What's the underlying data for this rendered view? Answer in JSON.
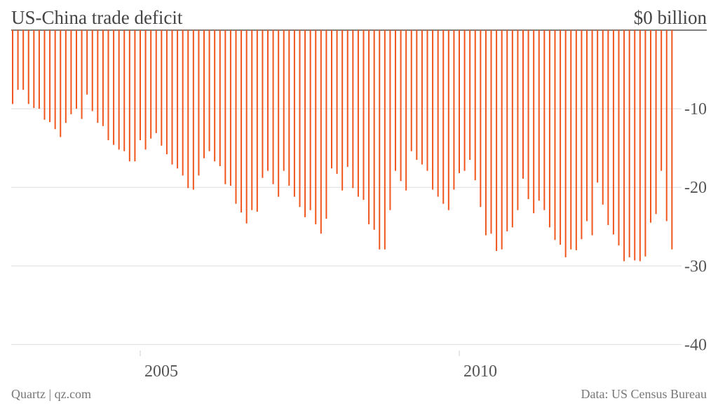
{
  "chart_data": {
    "type": "bar",
    "title": "US-China trade deficit",
    "source": "Data: US Census Bureau",
    "credit": "Quartz | qz.com",
    "color": "#f0561d",
    "grid": true,
    "categories": [
      null,
      null,
      null,
      null,
      null,
      null,
      null,
      null,
      null,
      null,
      null,
      null,
      null,
      null,
      null,
      null,
      null,
      null,
      null,
      null,
      null,
      null,
      null,
      null,
      "2005",
      null,
      null,
      null,
      null,
      null,
      null,
      null,
      null,
      null,
      null,
      null,
      null,
      null,
      null,
      null,
      null,
      null,
      null,
      null,
      null,
      null,
      null,
      null,
      null,
      null,
      null,
      null,
      null,
      null,
      null,
      null,
      null,
      null,
      null,
      null,
      null,
      null,
      null,
      null,
      null,
      null,
      null,
      null,
      null,
      null,
      null,
      null,
      null,
      null,
      null,
      null,
      null,
      null,
      null,
      null,
      null,
      null,
      null,
      null,
      "2010",
      null,
      null,
      null,
      null,
      null,
      null,
      null,
      null,
      null,
      null,
      null,
      null,
      null,
      null,
      null,
      null,
      null,
      null,
      null,
      null,
      null,
      null,
      null,
      null,
      null,
      null,
      null,
      null,
      null,
      null,
      null,
      null,
      null,
      null,
      null,
      null,
      null,
      null,
      null,
      null
    ],
    "values": [
      -9.4,
      -7.6,
      -7.6,
      -9.4,
      -9.9,
      -10.0,
      -11.4,
      -11.7,
      -12.6,
      -13.6,
      -11.8,
      -10.7,
      -10.0,
      -11.3,
      -8.2,
      -10.3,
      -11.8,
      -12.2,
      -14.0,
      -14.6,
      -15.2,
      -15.4,
      -16.7,
      -16.7,
      -14.0,
      -15.2,
      -13.8,
      -13.1,
      -14.7,
      -15.8,
      -17.1,
      -17.6,
      -18.5,
      -20.1,
      -20.3,
      -18.5,
      -16.3,
      -15.4,
      -16.7,
      -17.3,
      -19.6,
      -19.8,
      -22.1,
      -23.2,
      -24.6,
      -22.9,
      -23.1,
      -18.8,
      -17.9,
      -19.6,
      -21.2,
      -17.9,
      -19.8,
      -21.2,
      -22.5,
      -23.8,
      -22.9,
      -24.7,
      -25.9,
      -24.0,
      -17.6,
      -18.3,
      -20.4,
      -17.4,
      -20.1,
      -21.2,
      -21.6,
      -24.7,
      -25.4,
      -27.9,
      -27.9,
      -22.9,
      -17.9,
      -19.2,
      -20.4,
      -15.4,
      -16.5,
      -17.1,
      -17.9,
      -20.3,
      -21.2,
      -22.1,
      -22.9,
      -20.3,
      -18.2,
      -17.9,
      -16.5,
      -19.1,
      -22.5,
      -26.1,
      -25.9,
      -28.1,
      -27.9,
      -25.6,
      -25.1,
      -22.9,
      -18.9,
      -21.5,
      -23.3,
      -21.7,
      -22.9,
      -25.1,
      -26.7,
      -27.3,
      -28.9,
      -27.9,
      -28.0,
      -26.6,
      -24.3,
      -26.1,
      -19.4,
      -22.2,
      -24.8,
      -26.0,
      -27.4,
      -29.4,
      -28.9,
      -29.3,
      -29.4,
      -28.8,
      -24.5,
      -23.4,
      -17.9,
      -24.3,
      -27.9
    ],
    "ylim": [
      -40.5,
      0
    ],
    "yticks": [
      {
        "value": 0,
        "label": "$0 billion"
      },
      -10,
      -20,
      -30,
      -40
    ]
  }
}
